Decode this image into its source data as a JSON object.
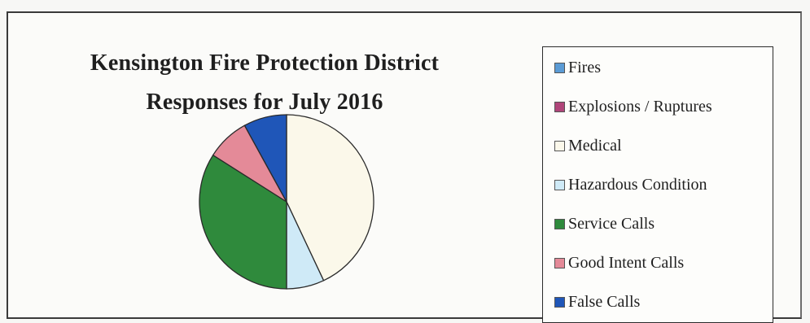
{
  "chart_data": {
    "type": "pie",
    "title_lines": [
      "Kensington Fire Protection District",
      "Responses for July 2016"
    ],
    "categories": [
      "Fires",
      "Explosions / Ruptures",
      "Medical",
      "Hazardous Condition",
      "Service Calls",
      "Good Intent Calls",
      "False Calls"
    ],
    "values": [
      0,
      0,
      43,
      7,
      34,
      8,
      8
    ],
    "colors": [
      "#5b9bd5",
      "#b0457a",
      "#fbf8ea",
      "#cfeaf7",
      "#2f8a3c",
      "#e48a98",
      "#1f56b8"
    ],
    "legend_position": "right"
  }
}
